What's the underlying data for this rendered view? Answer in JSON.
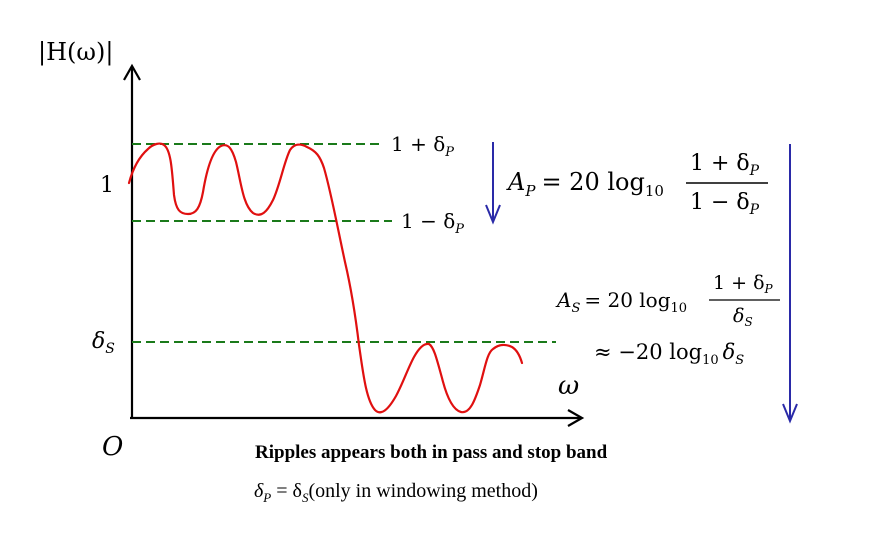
{
  "axes": {
    "y_label": "|H(ω)|",
    "x_label": "ω",
    "origin_label": "O",
    "tick_one": "1",
    "tick_delta_s": "δ",
    "tick_delta_s_sub": "S"
  },
  "levels": {
    "upper": {
      "prefix": "1 + δ",
      "sub": "P"
    },
    "lower": {
      "prefix": "1 − δ",
      "sub": "P"
    }
  },
  "equations": {
    "ap": {
      "lhs": "A",
      "lhs_sub": "P",
      "rhs": "= 20 log",
      "log_sub": "10",
      "num": "1 + δ",
      "num_sub": "P",
      "den": "1 − δ",
      "den_sub": "P"
    },
    "as": {
      "lhs": "A",
      "lhs_sub": "S",
      "rhs": "= 20 log",
      "log_sub": "10",
      "num": "1 + δ",
      "num_sub": "P",
      "den": "δ",
      "den_sub": "S"
    },
    "approx": {
      "text": "≈ −20 log",
      "log_sub": "10",
      "tail": "δ",
      "tail_sub": "S"
    }
  },
  "notes": {
    "ripples": "Ripples appears both in pass and stop band",
    "delta_eq_prefix": "δ",
    "delta_eq_sub1": "P",
    "delta_eq_mid": " = δ",
    "delta_eq_sub2": "S",
    "delta_eq_suffix": "(only in windowing method)"
  },
  "colors": {
    "response": "#e01010",
    "reference": "#1a7a1a",
    "arrow": "#2a2aa8",
    "axis": "#000000"
  }
}
